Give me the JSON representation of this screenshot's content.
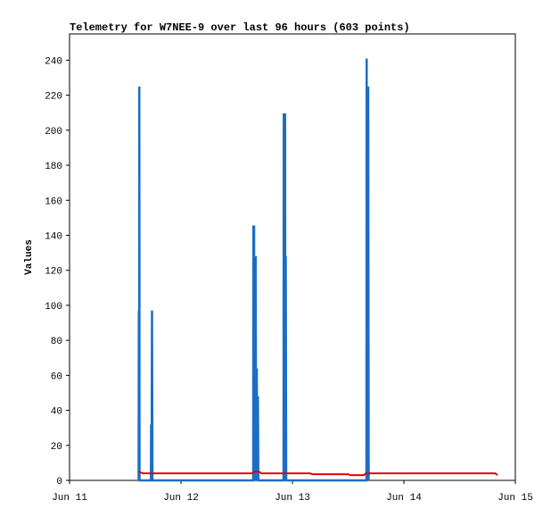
{
  "chart_data": {
    "type": "line",
    "title": "Telemetry for W7NEE-9 over last 96 hours (603 points)",
    "y_label": "Values",
    "xlim": [
      0,
      4
    ],
    "xticks": [
      {
        "value": 0,
        "label": "Jun 11"
      },
      {
        "value": 1,
        "label": "Jun 12"
      },
      {
        "value": 2,
        "label": "Jun 13"
      },
      {
        "value": 3,
        "label": "Jun 14"
      },
      {
        "value": 4,
        "label": "Jun 15"
      }
    ],
    "ylim": [
      0,
      255
    ],
    "yticks": [
      0,
      20,
      40,
      60,
      80,
      100,
      120,
      140,
      160,
      180,
      200,
      220,
      240
    ],
    "series": [
      {
        "color": "#1a6fc4",
        "x": [
          0.62,
          0.622,
          0.624,
          0.626,
          0.628,
          0.73,
          0.732,
          0.736,
          0.74,
          0.744,
          1.648,
          1.65,
          1.656,
          1.66,
          1.67,
          1.674,
          1.68,
          1.684,
          1.69,
          1.694,
          1.92,
          1.922,
          1.934,
          1.936,
          1.94,
          1.944,
          2.664,
          2.666,
          2.668,
          2.68,
          2.684
        ],
        "values": [
          0,
          97,
          0,
          225,
          0,
          0,
          32,
          0,
          97,
          0,
          0,
          145,
          145,
          0,
          128,
          0,
          64,
          0,
          48,
          0,
          0,
          209,
          209,
          0,
          128,
          0,
          0,
          241,
          0,
          225,
          0
        ]
      },
      {
        "color": "#e00000",
        "x": [
          0.62,
          0.66,
          0.7,
          1.64,
          1.66,
          1.7,
          1.72,
          2.16,
          2.18,
          2.5,
          2.52,
          2.64,
          2.66,
          3.82,
          3.84
        ],
        "values": [
          5,
          4,
          4,
          4,
          5,
          5,
          4,
          4,
          3.5,
          3.5,
          3,
          3,
          4,
          4,
          3
        ]
      }
    ]
  }
}
